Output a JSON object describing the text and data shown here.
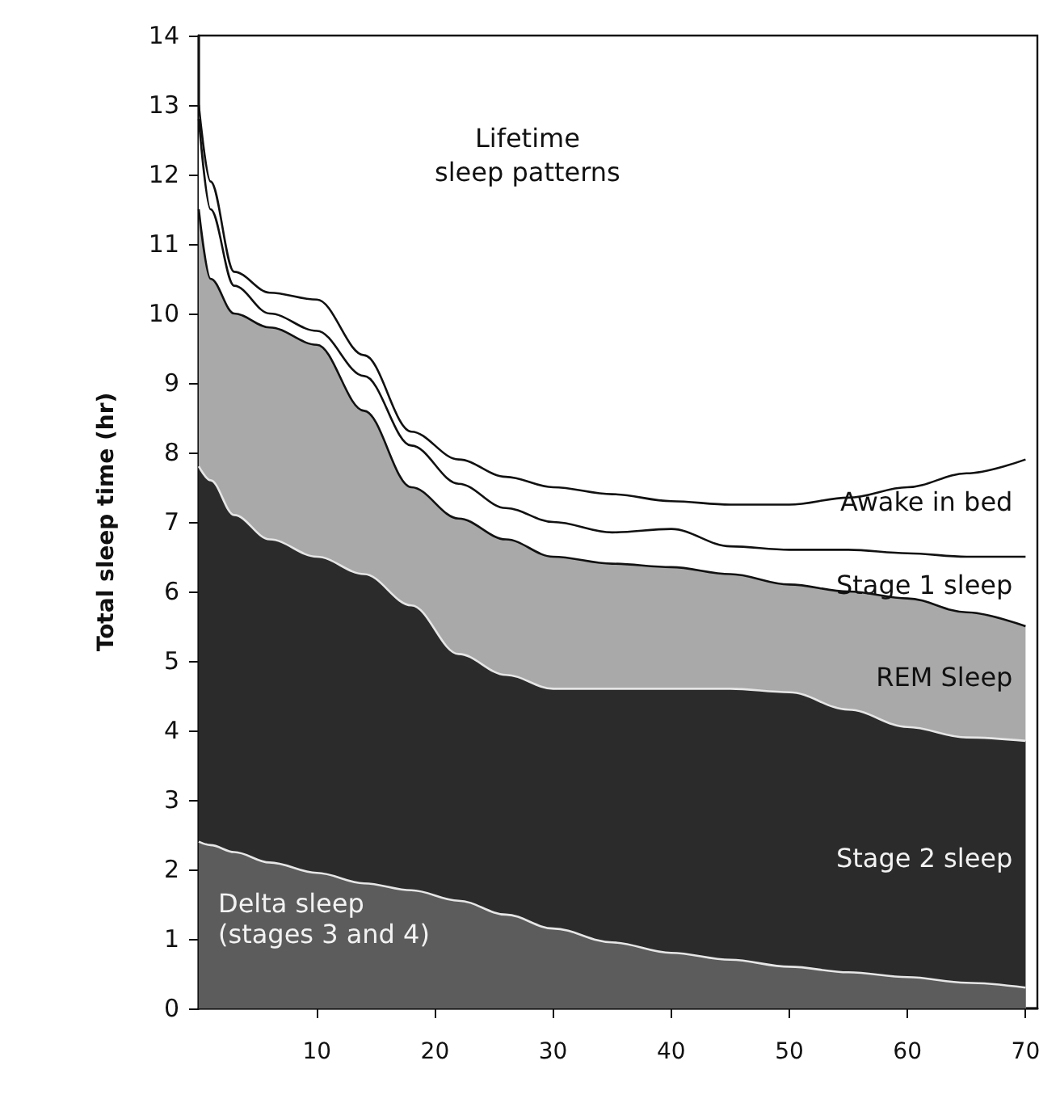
{
  "chart_data": {
    "type": "area",
    "stacked": true,
    "title": "Lifetime\nsleep patterns",
    "ylabel": "Total sleep time (hr)",
    "x": [
      0,
      1,
      3,
      6,
      10,
      14,
      18,
      22,
      26,
      30,
      35,
      40,
      45,
      50,
      55,
      60,
      65,
      70
    ],
    "xlim": [
      0,
      71
    ],
    "xticks": [
      10,
      20,
      30,
      40,
      50,
      60,
      70
    ],
    "ylim": [
      0,
      14
    ],
    "yticks": [
      0,
      1,
      2,
      3,
      4,
      5,
      6,
      7,
      8,
      9,
      10,
      11,
      12,
      13,
      14
    ],
    "grid": false,
    "legend": false,
    "series": [
      {
        "name": "Delta sleep\n(stages 3 and 4)",
        "color": "#5c5c5c",
        "values": [
          2.4,
          2.35,
          2.25,
          2.1,
          1.95,
          1.8,
          1.7,
          1.55,
          1.35,
          1.15,
          0.95,
          0.8,
          0.7,
          0.6,
          0.52,
          0.45,
          0.37,
          0.3
        ]
      },
      {
        "name": "Stage 2 sleep",
        "color": "#2b2b2b",
        "values": [
          5.4,
          5.25,
          4.85,
          4.65,
          4.55,
          4.45,
          4.1,
          3.55,
          3.45,
          3.45,
          3.65,
          3.8,
          3.9,
          3.95,
          3.78,
          3.6,
          3.53,
          3.55
        ]
      },
      {
        "name": "REM Sleep",
        "color": "#a9a9a9",
        "values": [
          3.7,
          2.9,
          2.9,
          3.05,
          3.05,
          2.35,
          1.7,
          1.95,
          1.95,
          1.9,
          1.8,
          1.75,
          1.65,
          1.55,
          1.7,
          1.85,
          1.8,
          1.65
        ]
      },
      {
        "name": "Stage 1 sleep",
        "color": "#ffffff",
        "values": [
          1.3,
          1.0,
          0.4,
          0.2,
          0.2,
          0.5,
          0.6,
          0.5,
          0.45,
          0.5,
          0.45,
          0.55,
          0.4,
          0.5,
          0.6,
          0.65,
          0.8,
          1.0
        ]
      },
      {
        "name": "Awake in bed",
        "color": "#ffffff",
        "values": [
          0.2,
          0.4,
          0.2,
          0.3,
          0.45,
          0.3,
          0.2,
          0.35,
          0.45,
          0.5,
          0.55,
          0.4,
          0.6,
          0.65,
          0.75,
          0.95,
          1.2,
          1.4
        ]
      }
    ]
  }
}
